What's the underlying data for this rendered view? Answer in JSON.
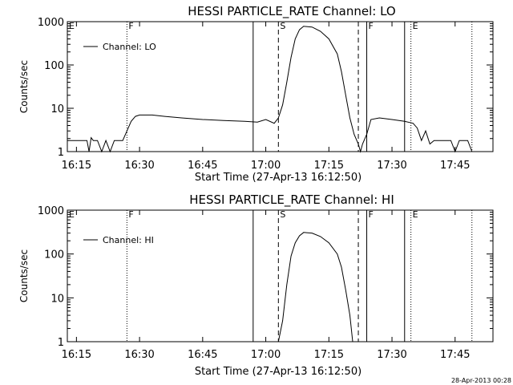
{
  "footer": {
    "timestamp": "28-Apr-2013 00:28"
  },
  "chart_data": [
    {
      "type": "line",
      "title": "HESSI PARTICLE_RATE Channel: LO",
      "xlabel": "Start Time (27-Apr-13 16:12:50)",
      "ylabel": "Counts/sec",
      "yscale": "log",
      "ylim": [
        1,
        1000
      ],
      "xlim_minutes_label": [
        "16:12:50",
        "17:54:00"
      ],
      "xticks": [
        "16:15",
        "16:30",
        "16:45",
        "17:00",
        "17:15",
        "17:30",
        "17:45"
      ],
      "yticks": [
        "1",
        "10",
        "100",
        "1000"
      ],
      "legend": {
        "position": "top-left",
        "entries": [
          "Channel: LO"
        ]
      },
      "markers": [
        {
          "label": "E",
          "time": "16:12:50",
          "style": "dotted"
        },
        {
          "label": "F",
          "time": "16:27:00",
          "style": "dotted"
        },
        {
          "label": "",
          "time": "16:57:00",
          "style": "solid"
        },
        {
          "label": "S",
          "time": "17:03:00",
          "style": "dashed"
        },
        {
          "label": "",
          "time": "17:22:00",
          "style": "dashed"
        },
        {
          "label": "F",
          "time": "17:24:00",
          "style": "solid"
        },
        {
          "label": "",
          "time": "17:33:00",
          "style": "solid"
        },
        {
          "label": "E",
          "time": "17:34:30",
          "style": "dotted"
        },
        {
          "label": "",
          "time": "17:49:00",
          "style": "dotted"
        }
      ],
      "series": [
        {
          "values_time_counts": [
            [
              "16:12:50",
              1.8
            ],
            [
              "16:16:00",
              1.8
            ],
            [
              "16:17:30",
              1.8
            ],
            [
              "16:18:00",
              1.0
            ],
            [
              "16:18:30",
              2.1
            ],
            [
              "16:19:00",
              1.8
            ],
            [
              "16:20:00",
              1.8
            ],
            [
              "16:21:00",
              1.0
            ],
            [
              "16:22:00",
              1.8
            ],
            [
              "16:23:00",
              1.0
            ],
            [
              "16:24:00",
              1.8
            ],
            [
              "16:26:00",
              1.8
            ],
            [
              "16:27:00",
              3.0
            ],
            [
              "16:28:00",
              5.0
            ],
            [
              "16:29:00",
              6.5
            ],
            [
              "16:30:00",
              7.0
            ],
            [
              "16:33:00",
              7.0
            ],
            [
              "16:36:00",
              6.5
            ],
            [
              "16:40:00",
              6.0
            ],
            [
              "16:45:00",
              5.5
            ],
            [
              "16:50:00",
              5.2
            ],
            [
              "16:55:00",
              5.0
            ],
            [
              "16:58:00",
              4.8
            ],
            [
              "17:00:00",
              5.5
            ],
            [
              "17:02:00",
              4.5
            ],
            [
              "17:03:00",
              6.0
            ],
            [
              "17:04:00",
              12.0
            ],
            [
              "17:05:00",
              40.0
            ],
            [
              "17:06:00",
              150.0
            ],
            [
              "17:07:00",
              400.0
            ],
            [
              "17:08:00",
              650.0
            ],
            [
              "17:09:00",
              780.0
            ],
            [
              "17:11:00",
              750.0
            ],
            [
              "17:13:00",
              600.0
            ],
            [
              "17:15:00",
              400.0
            ],
            [
              "17:17:00",
              180.0
            ],
            [
              "17:18:00",
              70.0
            ],
            [
              "17:19:00",
              20.0
            ],
            [
              "17:20:00",
              6.0
            ],
            [
              "17:21:00",
              2.5
            ],
            [
              "17:22:00",
              1.5
            ],
            [
              "17:22:30",
              1.0
            ],
            [
              "17:23:00",
              1.5
            ],
            [
              "17:24:00",
              2.5
            ],
            [
              "17:25:00",
              5.5
            ],
            [
              "17:27:00",
              6.0
            ],
            [
              "17:30:00",
              5.5
            ],
            [
              "17:33:00",
              5.0
            ],
            [
              "17:35:00",
              4.5
            ],
            [
              "17:36:00",
              3.5
            ],
            [
              "17:37:00",
              1.8
            ],
            [
              "17:38:00",
              3.0
            ],
            [
              "17:39:00",
              1.5
            ],
            [
              "17:40:00",
              1.8
            ],
            [
              "17:44:00",
              1.8
            ],
            [
              "17:45:00",
              1.0
            ],
            [
              "17:46:00",
              1.8
            ],
            [
              "17:48:00",
              1.8
            ],
            [
              "17:49:00",
              1.0
            ]
          ]
        }
      ]
    },
    {
      "type": "line",
      "title": "HESSI PARTICLE_RATE Channel: HI",
      "xlabel": "Start Time (27-Apr-13 16:12:50)",
      "ylabel": "Counts/sec",
      "yscale": "log",
      "ylim": [
        1,
        1000
      ],
      "xticks": [
        "16:15",
        "16:30",
        "16:45",
        "17:00",
        "17:15",
        "17:30",
        "17:45"
      ],
      "yticks": [
        "1",
        "10",
        "100",
        "1000"
      ],
      "legend": {
        "position": "top-left",
        "entries": [
          "Channel: HI"
        ]
      },
      "markers": [
        {
          "label": "E",
          "time": "16:12:50",
          "style": "dotted"
        },
        {
          "label": "F",
          "time": "16:27:00",
          "style": "dotted"
        },
        {
          "label": "",
          "time": "16:57:00",
          "style": "solid"
        },
        {
          "label": "S",
          "time": "17:03:00",
          "style": "dashed"
        },
        {
          "label": "",
          "time": "17:22:00",
          "style": "dashed"
        },
        {
          "label": "F",
          "time": "17:24:00",
          "style": "solid"
        },
        {
          "label": "",
          "time": "17:33:00",
          "style": "solid"
        },
        {
          "label": "E",
          "time": "17:34:30",
          "style": "dotted"
        },
        {
          "label": "",
          "time": "17:49:00",
          "style": "dotted"
        }
      ],
      "series": [
        {
          "values_time_counts": [
            [
              "17:03:00",
              1.0
            ],
            [
              "17:04:00",
              3.0
            ],
            [
              "17:05:00",
              20.0
            ],
            [
              "17:06:00",
              90.0
            ],
            [
              "17:07:00",
              180.0
            ],
            [
              "17:08:00",
              260.0
            ],
            [
              "17:09:00",
              310.0
            ],
            [
              "17:11:00",
              300.0
            ],
            [
              "17:13:00",
              250.0
            ],
            [
              "17:15:00",
              180.0
            ],
            [
              "17:17:00",
              100.0
            ],
            [
              "17:18:00",
              50.0
            ],
            [
              "17:19:00",
              15.0
            ],
            [
              "17:20:00",
              4.0
            ],
            [
              "17:20:40",
              1.0
            ]
          ]
        }
      ]
    }
  ]
}
